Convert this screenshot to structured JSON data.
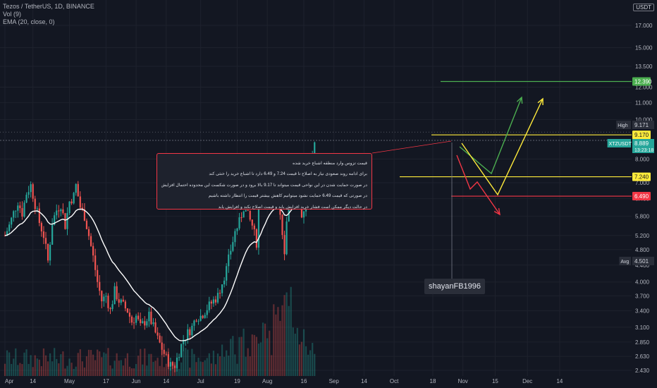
{
  "header": {
    "symbol_line": "Tezos / TetherUS, 1D, BINANCE",
    "vol_line": "Vol (9)",
    "ema_line": "EMA (20, close, 0)",
    "currency_label": "USDT"
  },
  "annotation": {
    "lines": [
      "قیمت تزوس وارد منطقه اشباع خرید شده",
      "برای ادامه روند صعودی نیاز به اصلاح تا قیمت 7.24 و 6.49 دارد تا اشباع خرید را خنثی کند",
      "در صورت حمایت شدن در این نواحی قیمت میتواند تا 9.17 بالا برود و در صورت شکست این محدوده احتمال افزایش تا 12.39 وجود دارد",
      "در صورتی که قیمت 6.49 حمایت نشود میتوانیم کاهش بیشتر قیمت را انتظار داشته باشیم",
      "در حالت دیگر ممکن است فشار خرید افزایش یابد و قیمت اصلاح نکند و افزایش یابد"
    ]
  },
  "author_tag": "shayanFB1996",
  "colors": {
    "background": "#131722",
    "up": "#26a69a",
    "down": "#ef5350",
    "ema": "#ffffff",
    "green_target": "#4caf50",
    "yellow_level": "#ffeb3b",
    "red_level": "#f23645"
  },
  "chart_data": {
    "type": "candlestick",
    "y_scale": "log",
    "y_ticks": [
      "17.000",
      "15.000",
      "13.500",
      "12.000",
      "11.000",
      "10.000",
      "8.000",
      "7.000",
      "6.400",
      "5.800",
      "5.200",
      "4.800",
      "4.400",
      "4.000",
      "3.700",
      "3.400",
      "3.100",
      "2.850",
      "2.630",
      "2.430"
    ],
    "x_ticks": [
      "Apr",
      "14",
      "May",
      "17",
      "Jun",
      "14",
      "Jul",
      "19",
      "Aug",
      "16",
      "Sep",
      "14",
      "Oct",
      "18",
      "Nov",
      "15",
      "Dec",
      "14"
    ],
    "levels": [
      {
        "label": "12.390",
        "value": 12.39,
        "color": "#4caf50"
      },
      {
        "label": "9.170",
        "value": 9.17,
        "color": "#ffeb3b"
      },
      {
        "label": "7.240",
        "value": 7.24,
        "color": "#ffeb3b"
      },
      {
        "label": "6.490",
        "value": 6.49,
        "color": "#f23645"
      }
    ],
    "price_tags": [
      {
        "label": "High",
        "value": "9.171"
      },
      {
        "label": "XTZUSDT",
        "value": "8.889",
        "sub": "13:23:18"
      },
      {
        "label": "Avg",
        "value": "4.501"
      }
    ],
    "close_points": [
      [
        1,
        5.2
      ],
      [
        3,
        5.5
      ],
      [
        5,
        5.9
      ],
      [
        7,
        6.3
      ],
      [
        9,
        5.9
      ],
      [
        11,
        6.6
      ],
      [
        13,
        6.9
      ],
      [
        15,
        6.2
      ],
      [
        17,
        5.6
      ],
      [
        19,
        5.2
      ],
      [
        21,
        4.5
      ],
      [
        23,
        5.6
      ],
      [
        25,
        6.0
      ],
      [
        27,
        6.2
      ],
      [
        29,
        5.5
      ],
      [
        31,
        6.3
      ],
      [
        33,
        6.5
      ],
      [
        34,
        6.9
      ],
      [
        36,
        6.1
      ],
      [
        38,
        5.8
      ],
      [
        40,
        5.2
      ],
      [
        42,
        4.6
      ],
      [
        44,
        4.0
      ],
      [
        46,
        3.6
      ],
      [
        48,
        3.7
      ],
      [
        50,
        3.4
      ],
      [
        52,
        3.8
      ],
      [
        54,
        3.6
      ],
      [
        56,
        3.5
      ],
      [
        58,
        3.4
      ],
      [
        60,
        3.2
      ],
      [
        62,
        3.3
      ],
      [
        64,
        3.1
      ],
      [
        66,
        3.2
      ],
      [
        68,
        3.3
      ],
      [
        70,
        3.1
      ],
      [
        72,
        2.9
      ],
      [
        74,
        2.75
      ],
      [
        76,
        2.6
      ],
      [
        78,
        2.5
      ],
      [
        80,
        2.5
      ],
      [
        82,
        2.7
      ],
      [
        84,
        2.9
      ],
      [
        86,
        3.0
      ],
      [
        88,
        3.1
      ],
      [
        90,
        3.3
      ],
      [
        92,
        3.3
      ],
      [
        94,
        3.4
      ],
      [
        96,
        3.5
      ],
      [
        98,
        3.6
      ],
      [
        100,
        3.7
      ],
      [
        102,
        4.0
      ],
      [
        104,
        4.3
      ],
      [
        106,
        4.8
      ],
      [
        108,
        5.3
      ],
      [
        110,
        5.6
      ],
      [
        112,
        6.1
      ],
      [
        114,
        5.8
      ],
      [
        116,
        5.5
      ],
      [
        118,
        5.0
      ],
      [
        119,
        6.2
      ],
      [
        121,
        7.0
      ],
      [
        123,
        7.1
      ],
      [
        125,
        6.8
      ],
      [
        127,
        6.5
      ],
      [
        129,
        5.9
      ],
      [
        131,
        4.8
      ],
      [
        133,
        6.6
      ],
      [
        135,
        7.1
      ],
      [
        137,
        6.9
      ],
      [
        139,
        5.7
      ],
      [
        141,
        6.5
      ],
      [
        143,
        7.2
      ],
      [
        145,
        8.9
      ]
    ]
  }
}
